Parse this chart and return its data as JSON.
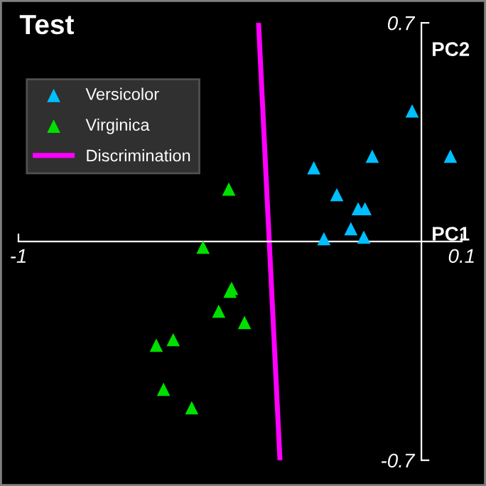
{
  "chart_data": {
    "type": "scatter",
    "title": "Test",
    "xlabel": "PC1",
    "ylabel": "PC2",
    "xlim": [
      -1,
      0.1
    ],
    "ylim": [
      -0.7,
      0.7
    ],
    "xticks": [
      -1,
      0.1
    ],
    "yticks": [
      -0.7,
      0.7
    ],
    "legend": "top left",
    "grid": false,
    "series": [
      {
        "name": "Versicolor",
        "color": "#00bfff",
        "marker": "triangle",
        "x": [
          -0.023,
          0.072,
          -0.122,
          -0.267,
          -0.21,
          -0.157,
          -0.14,
          -0.175,
          -0.143,
          -0.242
        ],
        "values": [
          0.418,
          0.273,
          0.273,
          0.236,
          0.15,
          0.105,
          0.105,
          0.041,
          0.014,
          0.009
        ]
      },
      {
        "name": "Virginica",
        "color": "#00e000",
        "marker": "triangle",
        "x": [
          -0.478,
          -0.542,
          -0.471,
          -0.475,
          -0.503,
          -0.439,
          -0.658,
          -0.616,
          -0.64,
          -0.57
        ],
        "values": [
          0.168,
          -0.018,
          -0.15,
          -0.159,
          -0.223,
          -0.259,
          -0.332,
          -0.314,
          -0.473,
          -0.532
        ]
      },
      {
        "name": "Discrimination",
        "color": "#ff00ff",
        "type": "line",
        "x": [
          -0.404,
          -0.351
        ],
        "values": [
          0.695,
          -0.7
        ]
      }
    ]
  }
}
